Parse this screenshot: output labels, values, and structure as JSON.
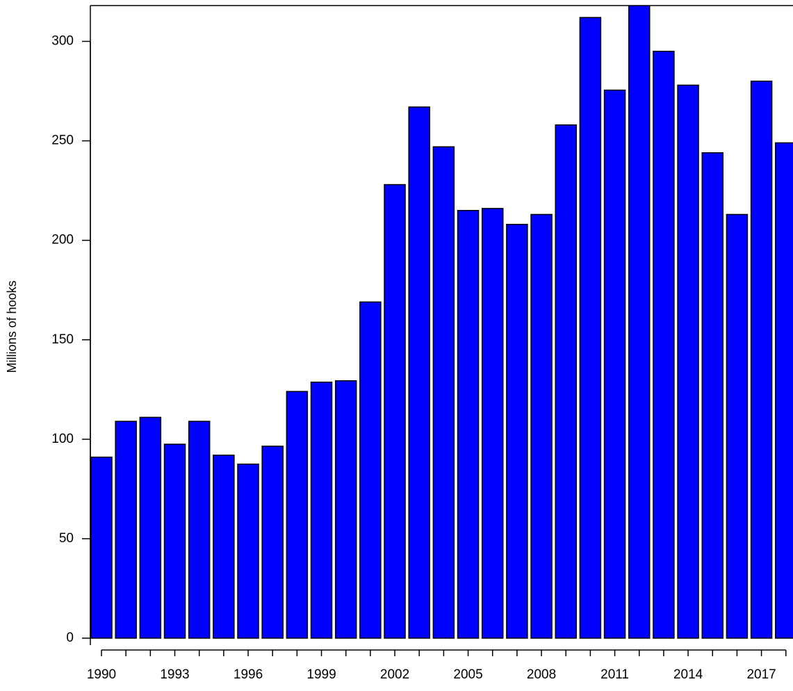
{
  "chart_data": {
    "type": "bar",
    "y_label": "Millions of hooks",
    "categories": [
      "1990",
      null,
      null,
      "1993",
      null,
      null,
      "1996",
      null,
      null,
      "1999",
      null,
      null,
      "2002",
      null,
      null,
      "2005",
      null,
      null,
      "2008",
      null,
      null,
      "2011",
      null,
      null,
      "2014",
      null,
      null,
      "2017",
      null
    ],
    "values": [
      91,
      109,
      111,
      97.5,
      109,
      92,
      87.5,
      96.5,
      124,
      128.7,
      129.4,
      169,
      228,
      267,
      247,
      215,
      216,
      208,
      213,
      258,
      312,
      275.5,
      320,
      295,
      278,
      244,
      213,
      280,
      249
    ],
    "color": "#0000ff",
    "ylim": [
      0,
      318
    ],
    "yticks": [
      0,
      50,
      100,
      150,
      200,
      250,
      300
    ]
  }
}
